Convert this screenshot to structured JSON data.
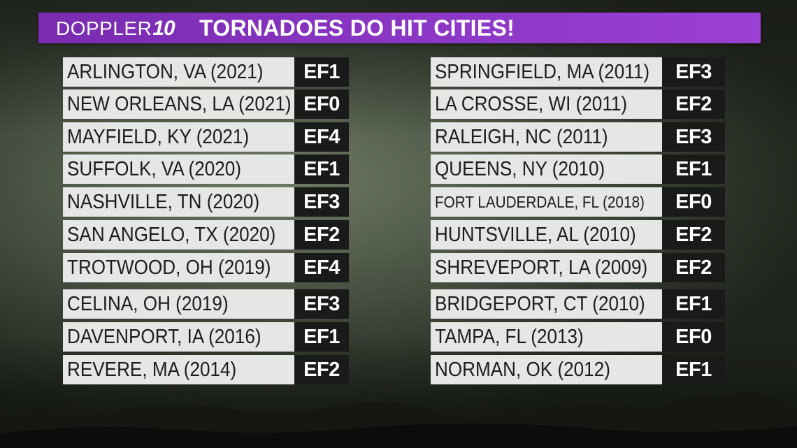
{
  "header": {
    "logo_text": "DOPPLER",
    "logo_number": "10",
    "title": "TORNADOES DO HIT CITIES!"
  },
  "colors": {
    "banner": "#8a36c4",
    "city_box": "#e6e6e6",
    "rating_box": "#1a1a1a"
  },
  "left_column": [
    {
      "city": "ARLINGTON, VA (2021)",
      "rating": "EF1"
    },
    {
      "city": "NEW ORLEANS, LA (2021)",
      "rating": "EF0"
    },
    {
      "city": "MAYFIELD, KY (2021)",
      "rating": "EF4"
    },
    {
      "city": "SUFFOLK, VA (2020)",
      "rating": "EF1"
    },
    {
      "city": "NASHVILLE, TN (2020)",
      "rating": "EF3"
    },
    {
      "city": "SAN ANGELO, TX (2020)",
      "rating": "EF2"
    },
    {
      "city": "TROTWOOD, OH (2019)",
      "rating": "EF4"
    },
    {
      "city": "CELINA, OH (2019)",
      "rating": "EF3"
    },
    {
      "city": "DAVENPORT, IA (2016)",
      "rating": "EF1"
    },
    {
      "city": "REVERE, MA (2014)",
      "rating": "EF2"
    }
  ],
  "right_column": [
    {
      "city": "SPRINGFIELD, MA (2011)",
      "rating": "EF3"
    },
    {
      "city": "LA CROSSE, WI (2011)",
      "rating": "EF2"
    },
    {
      "city": "RALEIGH, NC (2011)",
      "rating": "EF3"
    },
    {
      "city": "QUEENS, NY (2010)",
      "rating": "EF1"
    },
    {
      "city": "FORT LAUDERDALE, FL (2018)",
      "rating": "EF0"
    },
    {
      "city": "HUNTSVILLE, AL (2010)",
      "rating": "EF2"
    },
    {
      "city": "SHREVEPORT, LA (2009)",
      "rating": "EF2"
    },
    {
      "city": "BRIDGEPORT, CT (2010)",
      "rating": "EF1"
    },
    {
      "city": "TAMPA, FL (2013)",
      "rating": "EF0"
    },
    {
      "city": "NORMAN, OK (2012)",
      "rating": "EF1"
    }
  ]
}
